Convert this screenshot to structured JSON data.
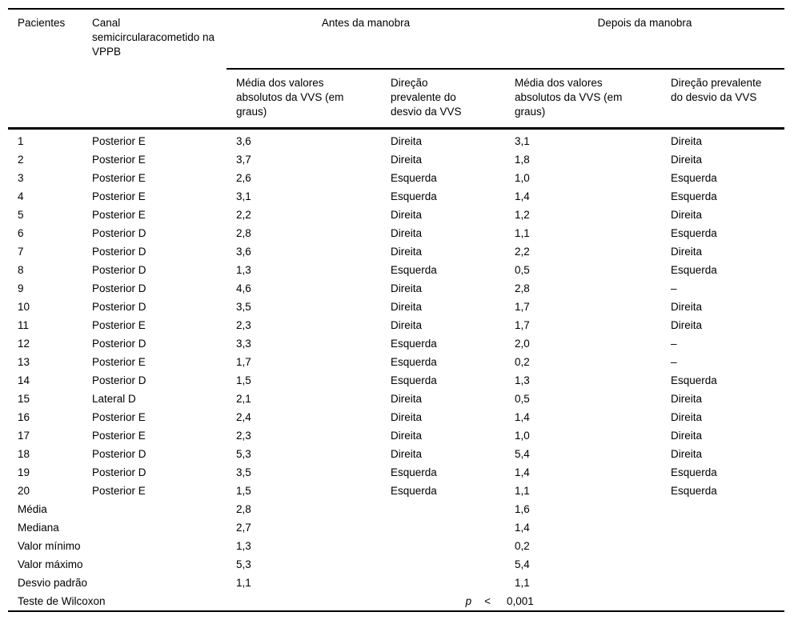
{
  "table": {
    "headers": {
      "pacientes": "Pacientes",
      "canal": "Canal semicircularacometido na VPPB",
      "antes_group": "Antes da manobra",
      "depois_group": "Depois da manobra",
      "media_antes": "Média dos valores absolutos da VVS (em graus)",
      "direcao_antes": "Direção prevalente do desvio da VVS",
      "media_depois": "Média dos valores absolutos da VVS (em graus)",
      "direcao_depois": "Direção prevalente do desvio da VVS"
    },
    "rows": [
      {
        "paciente": "1",
        "canal": "Posterior E",
        "media_antes": "3,6",
        "direcao_antes": "Direita",
        "media_depois": "3,1",
        "direcao_depois": "Direita"
      },
      {
        "paciente": "2",
        "canal": "Posterior E",
        "media_antes": "3,7",
        "direcao_antes": "Direita",
        "media_depois": "1,8",
        "direcao_depois": "Direita"
      },
      {
        "paciente": "3",
        "canal": "Posterior E",
        "media_antes": "2,6",
        "direcao_antes": "Esquerda",
        "media_depois": "1,0",
        "direcao_depois": "Esquerda"
      },
      {
        "paciente": "4",
        "canal": "Posterior E",
        "media_antes": "3,1",
        "direcao_antes": "Esquerda",
        "media_depois": "1,4",
        "direcao_depois": "Esquerda"
      },
      {
        "paciente": "5",
        "canal": "Posterior E",
        "media_antes": "2,2",
        "direcao_antes": "Direita",
        "media_depois": "1,2",
        "direcao_depois": "Direita"
      },
      {
        "paciente": "6",
        "canal": "Posterior D",
        "media_antes": "2,8",
        "direcao_antes": "Direita",
        "media_depois": "1,1",
        "direcao_depois": "Esquerda"
      },
      {
        "paciente": "7",
        "canal": "Posterior D",
        "media_antes": "3,6",
        "direcao_antes": "Direita",
        "media_depois": "2,2",
        "direcao_depois": "Direita"
      },
      {
        "paciente": "8",
        "canal": "Posterior D",
        "media_antes": "1,3",
        "direcao_antes": "Esquerda",
        "media_depois": "0,5",
        "direcao_depois": "Esquerda"
      },
      {
        "paciente": "9",
        "canal": "Posterior D",
        "media_antes": "4,6",
        "direcao_antes": "Direita",
        "media_depois": "2,8",
        "direcao_depois": "–"
      },
      {
        "paciente": "10",
        "canal": "Posterior D",
        "media_antes": "3,5",
        "direcao_antes": "Direita",
        "media_depois": "1,7",
        "direcao_depois": "Direita"
      },
      {
        "paciente": "11",
        "canal": "Posterior E",
        "media_antes": "2,3",
        "direcao_antes": "Direita",
        "media_depois": "1,7",
        "direcao_depois": "Direita"
      },
      {
        "paciente": "12",
        "canal": "Posterior D",
        "media_antes": "3,3",
        "direcao_antes": "Esquerda",
        "media_depois": "2,0",
        "direcao_depois": "–"
      },
      {
        "paciente": "13",
        "canal": "Posterior E",
        "media_antes": "1,7",
        "direcao_antes": "Esquerda",
        "media_depois": "0,2",
        "direcao_depois": "–"
      },
      {
        "paciente": "14",
        "canal": "Posterior D",
        "media_antes": "1,5",
        "direcao_antes": "Esquerda",
        "media_depois": "1,3",
        "direcao_depois": "Esquerda"
      },
      {
        "paciente": "15",
        "canal": "Lateral D",
        "media_antes": "2,1",
        "direcao_antes": "Direita",
        "media_depois": "0,5",
        "direcao_depois": "Direita"
      },
      {
        "paciente": "16",
        "canal": "Posterior E",
        "media_antes": "2,4",
        "direcao_antes": "Direita",
        "media_depois": "1,4",
        "direcao_depois": "Direita"
      },
      {
        "paciente": "17",
        "canal": "Posterior E",
        "media_antes": "2,3",
        "direcao_antes": "Direita",
        "media_depois": "1,0",
        "direcao_depois": "Direita"
      },
      {
        "paciente": "18",
        "canal": "Posterior D",
        "media_antes": "5,3",
        "direcao_antes": "Direita",
        "media_depois": "5,4",
        "direcao_depois": "Direita"
      },
      {
        "paciente": "19",
        "canal": "Posterior D",
        "media_antes": "3,5",
        "direcao_antes": "Esquerda",
        "media_depois": "1,4",
        "direcao_depois": "Esquerda"
      },
      {
        "paciente": "20",
        "canal": "Posterior E",
        "media_antes": "1,5",
        "direcao_antes": "Esquerda",
        "media_depois": "1,1",
        "direcao_depois": "Esquerda"
      }
    ],
    "summary_rows": [
      {
        "label": "Média",
        "antes": "2,8",
        "depois": "1,6"
      },
      {
        "label": "Mediana",
        "antes": "2,7",
        "depois": "1,4"
      },
      {
        "label": "Valor mínimo",
        "antes": "1,3",
        "depois": "0,2"
      },
      {
        "label": "Valor máximo",
        "antes": "5,3",
        "depois": "5,4"
      },
      {
        "label": "Desvio padrão",
        "antes": "1,1",
        "depois": "1,1"
      }
    ],
    "wilcoxon": {
      "label": "Teste de Wilcoxon",
      "p": "p",
      "op": "<",
      "value": "0,001"
    }
  }
}
